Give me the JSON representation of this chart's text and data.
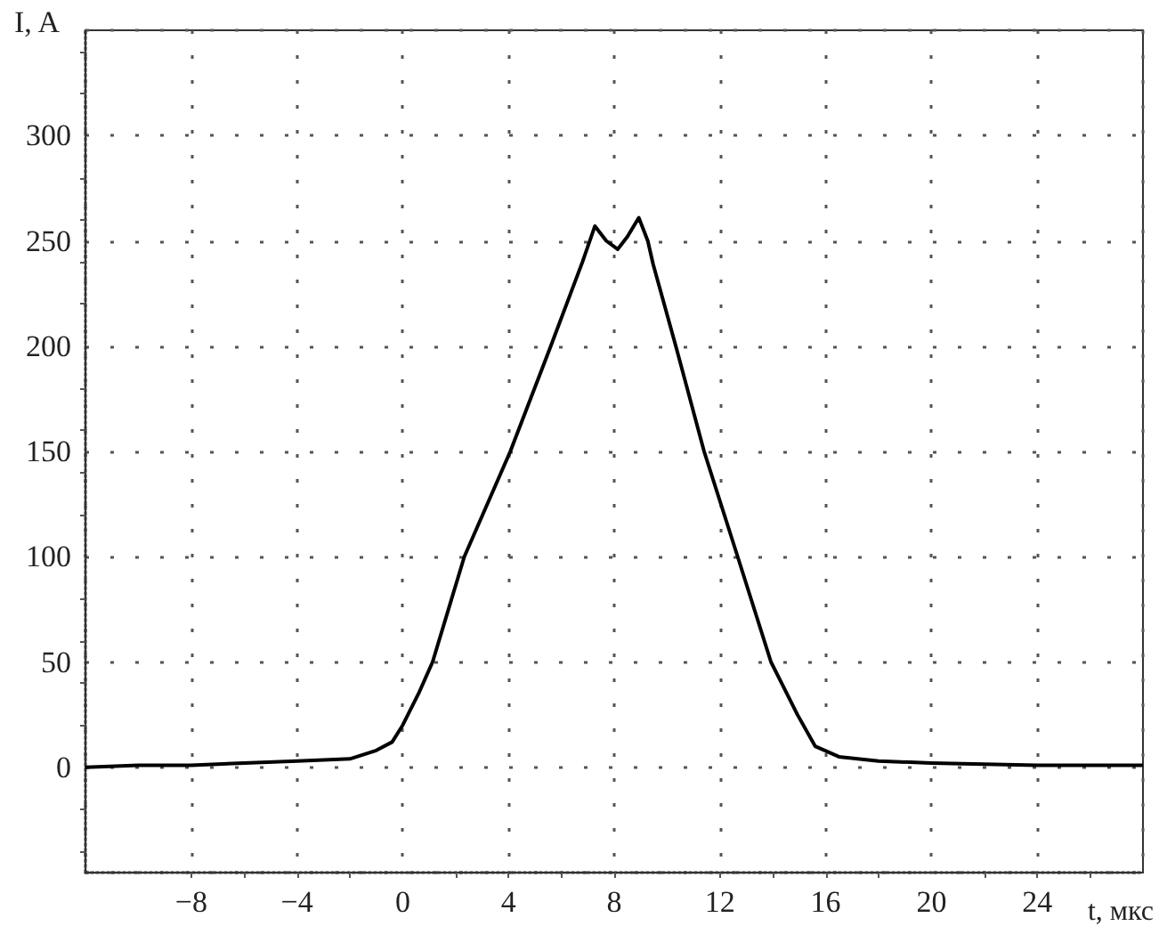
{
  "chart_data": {
    "type": "line",
    "xlabel": "t, мкс",
    "ylabel": "I, A",
    "x": [
      -12,
      -10,
      -8,
      -6,
      -4,
      -2,
      -1.5,
      -1,
      -0.4,
      0,
      0.6,
      1.13,
      2.33,
      4.07,
      5.6,
      6.8,
      7.27,
      7.7,
      8.13,
      8.5,
      8.93,
      9.27,
      9.47,
      10.33,
      11.4,
      12.67,
      13.93,
      14.93,
      15.6,
      16.5,
      18,
      20,
      24,
      28
    ],
    "series": [
      {
        "color": "#000000",
        "values": [
          0,
          1,
          1,
          2,
          3,
          4,
          6,
          8,
          12,
          20,
          35,
          50,
          100,
          150,
          200,
          240,
          257,
          250,
          246,
          252,
          261,
          250,
          239,
          200,
          150,
          100,
          50,
          25,
          10,
          5,
          3,
          2,
          1,
          1
        ]
      }
    ],
    "xlim": [
      -12,
      28
    ],
    "xticks": [
      {
        "value": -12,
        "label": null
      },
      -8,
      -4,
      0,
      4,
      8,
      12,
      16,
      20,
      24,
      {
        "value": 28,
        "label": null
      }
    ],
    "ylim": [
      -50,
      350
    ],
    "yticks": [
      {
        "value": -50,
        "label": null
      },
      0,
      50,
      100,
      150,
      200,
      250,
      300,
      {
        "value": 350,
        "label": null
      }
    ],
    "grid": true,
    "marker": "none",
    "line_style": "solid"
  }
}
